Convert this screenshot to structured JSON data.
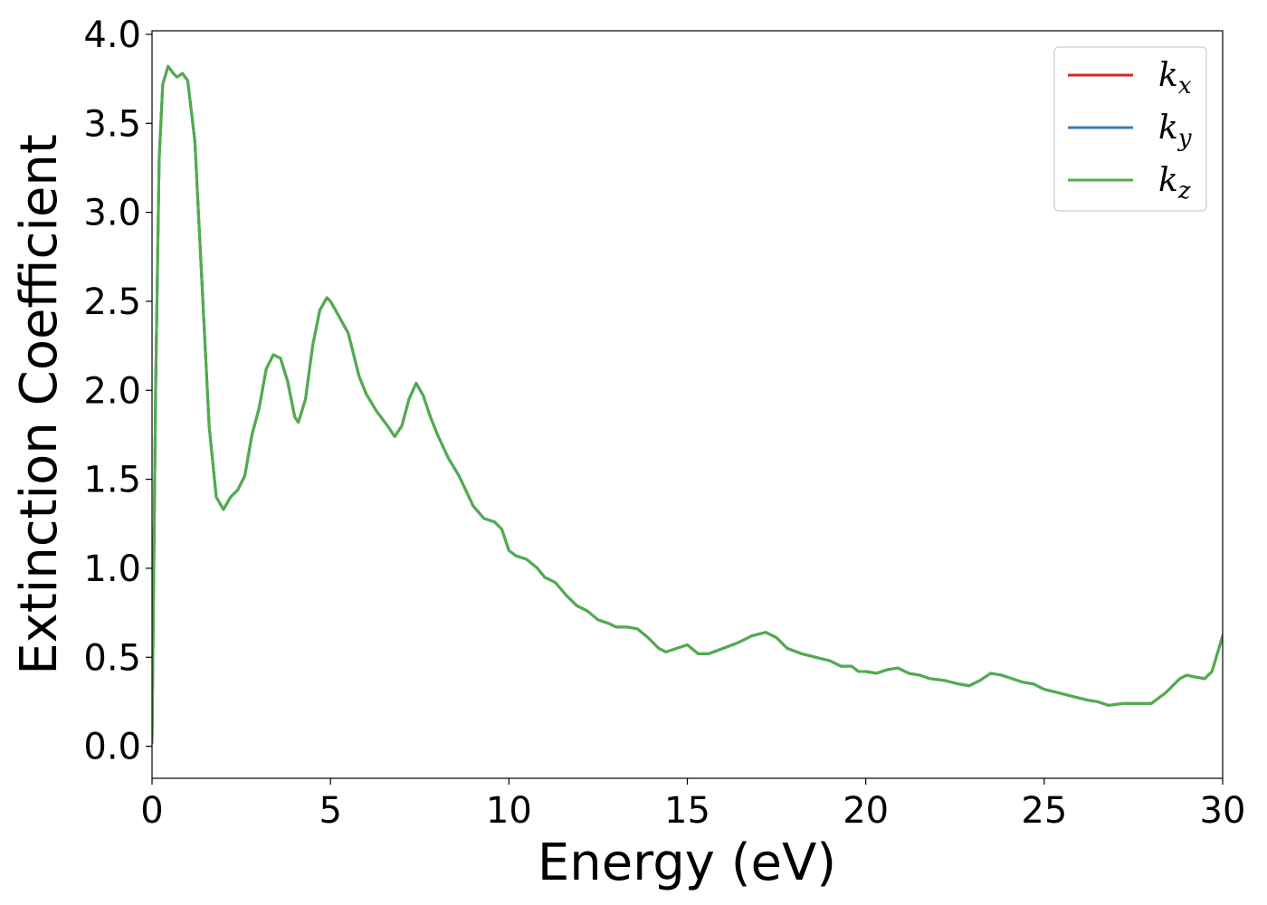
{
  "chart_data": {
    "type": "line",
    "title": "",
    "xlabel": "Energy (eV)",
    "ylabel": "Extinction Coefficient",
    "xlim": [
      0,
      30
    ],
    "ylim": [
      -0.18,
      4.02
    ],
    "xticks": [
      0,
      5,
      10,
      15,
      20,
      25,
      30
    ],
    "xtick_labels": [
      "0",
      "5",
      "10",
      "15",
      "20",
      "25",
      "30"
    ],
    "yticks": [
      0,
      0.5,
      1,
      1.5,
      2,
      2.5,
      3,
      3.5,
      4
    ],
    "ytick_labels": [
      "0.0",
      "0.5",
      "1.0",
      "1.5",
      "2.0",
      "2.5",
      "3.0",
      "3.5",
      "4.0"
    ],
    "grid": false,
    "legend_position": "top-right",
    "x": [
      0,
      0.1,
      0.2,
      0.3,
      0.45,
      0.6,
      0.7,
      0.85,
      1.0,
      1.2,
      1.4,
      1.6,
      1.8,
      2.0,
      2.2,
      2.4,
      2.6,
      2.8,
      3.0,
      3.2,
      3.4,
      3.6,
      3.8,
      4.0,
      4.1,
      4.3,
      4.5,
      4.7,
      4.9,
      5.0,
      5.2,
      5.5,
      5.8,
      6.0,
      6.3,
      6.6,
      6.8,
      7.0,
      7.2,
      7.4,
      7.6,
      7.8,
      8.0,
      8.3,
      8.6,
      9.0,
      9.3,
      9.6,
      9.8,
      10.0,
      10.2,
      10.5,
      10.8,
      11.0,
      11.3,
      11.6,
      11.9,
      12.2,
      12.5,
      12.8,
      13.0,
      13.3,
      13.6,
      13.9,
      14.2,
      14.4,
      14.7,
      15.0,
      15.3,
      15.6,
      16.0,
      16.4,
      16.8,
      17.2,
      17.5,
      17.8,
      18.2,
      18.6,
      19.0,
      19.3,
      19.6,
      19.8,
      20.0,
      20.3,
      20.6,
      20.9,
      21.2,
      21.5,
      21.8,
      22.2,
      22.6,
      22.9,
      23.2,
      23.5,
      23.8,
      24.1,
      24.4,
      24.7,
      25.0,
      25.4,
      25.8,
      26.2,
      26.5,
      26.8,
      27.2,
      27.6,
      28.0,
      28.4,
      28.8,
      29.0,
      29.2,
      29.5,
      29.7,
      30.0
    ],
    "series": [
      {
        "name": "x",
        "color": "#d62728",
        "values": [
          0.02,
          2.0,
          3.3,
          3.72,
          3.82,
          3.78,
          3.76,
          3.78,
          3.74,
          3.4,
          2.6,
          1.8,
          1.4,
          1.33,
          1.4,
          1.44,
          1.52,
          1.75,
          1.9,
          2.12,
          2.2,
          2.18,
          2.05,
          1.85,
          1.82,
          1.95,
          2.25,
          2.45,
          2.52,
          2.5,
          2.43,
          2.32,
          2.08,
          1.98,
          1.88,
          1.8,
          1.74,
          1.8,
          1.95,
          2.04,
          1.97,
          1.85,
          1.75,
          1.62,
          1.52,
          1.35,
          1.28,
          1.26,
          1.22,
          1.1,
          1.07,
          1.05,
          1.0,
          0.95,
          0.92,
          0.85,
          0.79,
          0.76,
          0.71,
          0.69,
          0.67,
          0.67,
          0.66,
          0.61,
          0.55,
          0.53,
          0.55,
          0.57,
          0.52,
          0.52,
          0.55,
          0.58,
          0.62,
          0.64,
          0.61,
          0.55,
          0.52,
          0.5,
          0.48,
          0.45,
          0.45,
          0.42,
          0.42,
          0.41,
          0.43,
          0.44,
          0.41,
          0.4,
          0.38,
          0.37,
          0.35,
          0.34,
          0.37,
          0.41,
          0.4,
          0.38,
          0.36,
          0.35,
          0.32,
          0.3,
          0.28,
          0.26,
          0.25,
          0.23,
          0.24,
          0.24,
          0.24,
          0.3,
          0.38,
          0.4,
          0.39,
          0.38,
          0.42,
          0.62
        ]
      },
      {
        "name": "y",
        "color": "#377eb8",
        "values": [
          0.02,
          2.0,
          3.3,
          3.72,
          3.82,
          3.78,
          3.76,
          3.78,
          3.74,
          3.4,
          2.6,
          1.8,
          1.4,
          1.33,
          1.4,
          1.44,
          1.52,
          1.75,
          1.9,
          2.12,
          2.2,
          2.18,
          2.05,
          1.85,
          1.82,
          1.95,
          2.25,
          2.45,
          2.52,
          2.5,
          2.43,
          2.32,
          2.08,
          1.98,
          1.88,
          1.8,
          1.74,
          1.8,
          1.95,
          2.04,
          1.97,
          1.85,
          1.75,
          1.62,
          1.52,
          1.35,
          1.28,
          1.26,
          1.22,
          1.1,
          1.07,
          1.05,
          1.0,
          0.95,
          0.92,
          0.85,
          0.79,
          0.76,
          0.71,
          0.69,
          0.67,
          0.67,
          0.66,
          0.61,
          0.55,
          0.53,
          0.55,
          0.57,
          0.52,
          0.52,
          0.55,
          0.58,
          0.62,
          0.64,
          0.61,
          0.55,
          0.52,
          0.5,
          0.48,
          0.45,
          0.45,
          0.42,
          0.42,
          0.41,
          0.43,
          0.44,
          0.41,
          0.4,
          0.38,
          0.37,
          0.35,
          0.34,
          0.37,
          0.41,
          0.4,
          0.38,
          0.36,
          0.35,
          0.32,
          0.3,
          0.28,
          0.26,
          0.25,
          0.23,
          0.24,
          0.24,
          0.24,
          0.3,
          0.38,
          0.4,
          0.39,
          0.38,
          0.42,
          0.62
        ]
      },
      {
        "name": "z",
        "color": "#4daf4a",
        "values": [
          0.02,
          2.0,
          3.3,
          3.72,
          3.82,
          3.78,
          3.76,
          3.78,
          3.74,
          3.4,
          2.6,
          1.8,
          1.4,
          1.33,
          1.4,
          1.44,
          1.52,
          1.75,
          1.9,
          2.12,
          2.2,
          2.18,
          2.05,
          1.85,
          1.82,
          1.95,
          2.25,
          2.45,
          2.52,
          2.5,
          2.43,
          2.32,
          2.08,
          1.98,
          1.88,
          1.8,
          1.74,
          1.8,
          1.95,
          2.04,
          1.97,
          1.85,
          1.75,
          1.62,
          1.52,
          1.35,
          1.28,
          1.26,
          1.22,
          1.1,
          1.07,
          1.05,
          1.0,
          0.95,
          0.92,
          0.85,
          0.79,
          0.76,
          0.71,
          0.69,
          0.67,
          0.67,
          0.66,
          0.61,
          0.55,
          0.53,
          0.55,
          0.57,
          0.52,
          0.52,
          0.55,
          0.58,
          0.62,
          0.64,
          0.61,
          0.55,
          0.52,
          0.5,
          0.48,
          0.45,
          0.45,
          0.42,
          0.42,
          0.41,
          0.43,
          0.44,
          0.41,
          0.4,
          0.38,
          0.37,
          0.35,
          0.34,
          0.37,
          0.41,
          0.4,
          0.38,
          0.36,
          0.35,
          0.32,
          0.3,
          0.28,
          0.26,
          0.25,
          0.23,
          0.24,
          0.24,
          0.24,
          0.3,
          0.38,
          0.4,
          0.39,
          0.38,
          0.42,
          0.62
        ]
      }
    ],
    "legend": [
      {
        "base": "k",
        "sub": "x",
        "color": "#d62728"
      },
      {
        "base": "k",
        "sub": "y",
        "color": "#377eb8"
      },
      {
        "base": "k",
        "sub": "z",
        "color": "#4daf4a"
      }
    ]
  }
}
